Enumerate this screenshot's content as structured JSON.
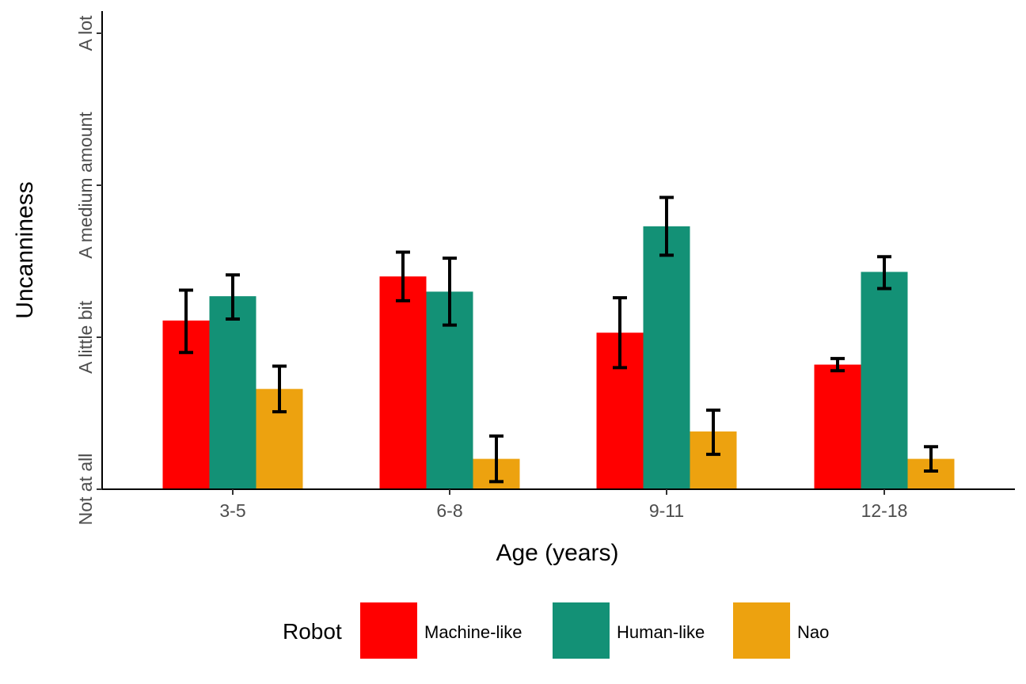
{
  "chart_data": {
    "type": "bar",
    "categories": [
      "3-5",
      "6-8",
      "9-11",
      "12-18"
    ],
    "series": [
      {
        "name": "Machine-like",
        "color": "#ff0000",
        "values": [
          1.11,
          1.4,
          1.03,
          0.82
        ],
        "error_low": [
          0.9,
          1.24,
          0.8,
          0.78
        ],
        "error_high": [
          1.31,
          1.56,
          1.26,
          0.86
        ]
      },
      {
        "name": "Human-like",
        "color": "#139176",
        "values": [
          1.27,
          1.3,
          1.73,
          1.43
        ],
        "error_low": [
          1.12,
          1.08,
          1.54,
          1.32
        ],
        "error_high": [
          1.41,
          1.52,
          1.92,
          1.53
        ]
      },
      {
        "name": "Nao",
        "color": "#eda20f",
        "values": [
          0.66,
          0.2,
          0.38,
          0.2
        ],
        "error_low": [
          0.51,
          0.05,
          0.23,
          0.12
        ],
        "error_high": [
          0.81,
          0.35,
          0.52,
          0.28
        ]
      }
    ],
    "y_ticks": [
      {
        "value": 0,
        "label": "Not at all"
      },
      {
        "value": 1,
        "label": "A little bit"
      },
      {
        "value": 2,
        "label": "A medium amount"
      },
      {
        "value": 3,
        "label": "A lot"
      }
    ],
    "ylim": [
      0,
      3.1
    ],
    "xlabel": "Age (years)",
    "ylabel": "Uncanniness",
    "legend": {
      "title": "Robot",
      "position": "bottom"
    },
    "grid": false
  }
}
